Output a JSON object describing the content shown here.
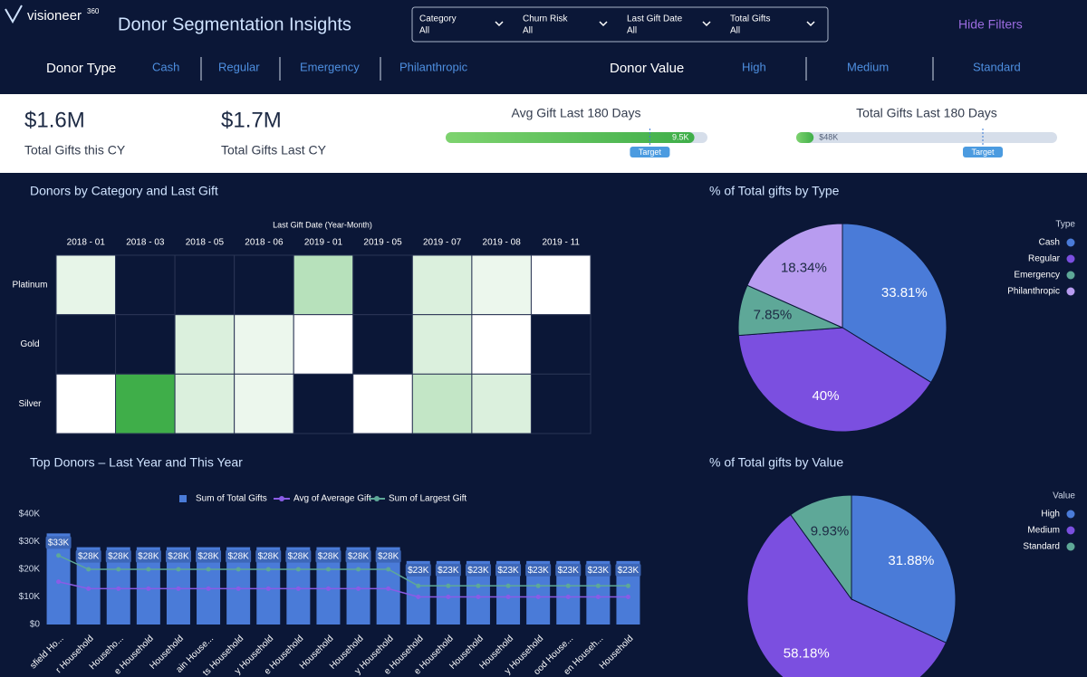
{
  "header": {
    "logo": "visioneer",
    "logo_sup": "360",
    "title": "Donor Segmentation Insights",
    "hide_filters": "Hide Filters"
  },
  "filters": [
    {
      "label": "Category",
      "value": "All"
    },
    {
      "label": "Churn Risk",
      "value": "All"
    },
    {
      "label": "Last Gift Date",
      "value": "All"
    },
    {
      "label": "Total Gifts",
      "value": "All"
    }
  ],
  "donor_type": {
    "label": "Donor Type",
    "options": [
      "Cash",
      "Regular",
      "Emergency",
      "Philanthropic"
    ]
  },
  "donor_value": {
    "label": "Donor Value",
    "options": [
      "High",
      "Medium",
      "Standard"
    ]
  },
  "kpis": [
    {
      "value": "$1.6M",
      "label": "Total Gifts this CY"
    },
    {
      "value": "$1.7M",
      "label": "Total Gifts Last CY"
    }
  ],
  "gauges": [
    {
      "title": "Avg Gift Last 180 Days",
      "value": 9500,
      "value_label": "9.5K",
      "target": 7800,
      "target_label": "Target",
      "xlim": [
        0,
        10000
      ]
    },
    {
      "title": "Total Gifts Last 180 Days",
      "value": 48000,
      "value_label": "$48K",
      "target": 515000,
      "target_label": "Target",
      "xlim": [
        0,
        720000
      ]
    }
  ],
  "chart_data": [
    {
      "type": "heatmap",
      "title": "Donors by Category and Last Gift",
      "x_label": "Last Gift Date (Year-Month)",
      "categories": [
        "2018 - 01",
        "2018 - 03",
        "2018 - 05",
        "2018 - 06",
        "2019 - 01",
        "2019 - 05",
        "2019 - 07",
        "2019 - 08",
        "2019 - 11"
      ],
      "rows": [
        "Platinum",
        "Gold",
        "Silver"
      ],
      "values": [
        [
          2,
          null,
          null,
          null,
          4,
          null,
          2.5,
          1.8,
          1
        ],
        [
          null,
          null,
          2.5,
          1.8,
          1,
          null,
          2.5,
          1,
          null
        ],
        [
          1,
          9,
          2.5,
          1.8,
          null,
          1,
          3.5,
          2.5,
          null
        ]
      ],
      "colors": [
        "#ffffff",
        "#3fae49"
      ],
      "clim": [
        1,
        9
      ]
    },
    {
      "type": "pie",
      "title": "% of Total gifts by Type",
      "legend_title": "Type",
      "categories": [
        "Cash",
        "Regular",
        "Emergency",
        "Philanthropic"
      ],
      "values": [
        33.81,
        40,
        7.85,
        18.34
      ],
      "value_labels": [
        "33.81%",
        "40%",
        "7.85%",
        "18.34%"
      ],
      "colors": [
        "#4a7bd8",
        "#7b4fe0",
        "#5ea898",
        "#b89cf0"
      ]
    },
    {
      "type": "bar",
      "title": "Top Donors – Last Year and This Year",
      "categories": [
        "sfield Ho...",
        "r Household",
        "Househo...",
        "e Household",
        "Household",
        "ain House...",
        "ts Household",
        "y Household",
        "e Household",
        "Household",
        "Household",
        "y Household",
        "e Household",
        "e Household",
        "Household",
        "Household",
        "y Household",
        "ood House...",
        "en Househ...",
        "Household"
      ],
      "series": [
        {
          "name": "Sum of Total Gifts",
          "type": "bar",
          "color": "#4a7bd8",
          "values": [
            33000,
            28000,
            28000,
            28000,
            28000,
            28000,
            28000,
            28000,
            28000,
            28000,
            28000,
            28000,
            23000,
            23000,
            23000,
            23000,
            23000,
            23000,
            23000,
            23000
          ],
          "value_labels": [
            "$33K",
            "$28K",
            "$28K",
            "$28K",
            "$28K",
            "$28K",
            "$28K",
            "$28K",
            "$28K",
            "$28K",
            "$28K",
            "$28K",
            "$23K",
            "$23K",
            "$23K",
            "$23K",
            "$23K",
            "$23K",
            "$23K",
            "$23K"
          ]
        },
        {
          "name": "Avg of Average Gift",
          "type": "line",
          "color": "#8a5ce6",
          "values": [
            15500,
            13000,
            13000,
            13000,
            13000,
            13000,
            13000,
            13000,
            13000,
            13000,
            13000,
            13000,
            10000,
            10000,
            10000,
            10000,
            10000,
            10000,
            10000,
            10000
          ]
        },
        {
          "name": "Sum of Largest Gift",
          "type": "line",
          "color": "#5ea898",
          "values": [
            25000,
            20000,
            20000,
            20000,
            20000,
            20000,
            20000,
            20000,
            20000,
            20000,
            20000,
            20000,
            14000,
            14000,
            14000,
            14000,
            14000,
            14000,
            14000,
            14000
          ]
        }
      ],
      "ylim": [
        0,
        40000
      ],
      "yticks": [
        {
          "value": 0,
          "label": "$0"
        },
        {
          "value": 10000,
          "label": "$10K"
        },
        {
          "value": 20000,
          "label": "$20K"
        },
        {
          "value": 30000,
          "label": "$30K"
        },
        {
          "value": 40000,
          "label": "$40K"
        }
      ]
    },
    {
      "type": "pie",
      "title": "% of Total gifts by Value",
      "legend_title": "Value",
      "categories": [
        "High",
        "Medium",
        "Standard"
      ],
      "values": [
        31.88,
        58.18,
        9.93
      ],
      "value_labels": [
        "31.88%",
        "58.18%",
        "9.93%"
      ],
      "colors": [
        "#4a7bd8",
        "#7b4fe0",
        "#5ea898"
      ]
    }
  ]
}
